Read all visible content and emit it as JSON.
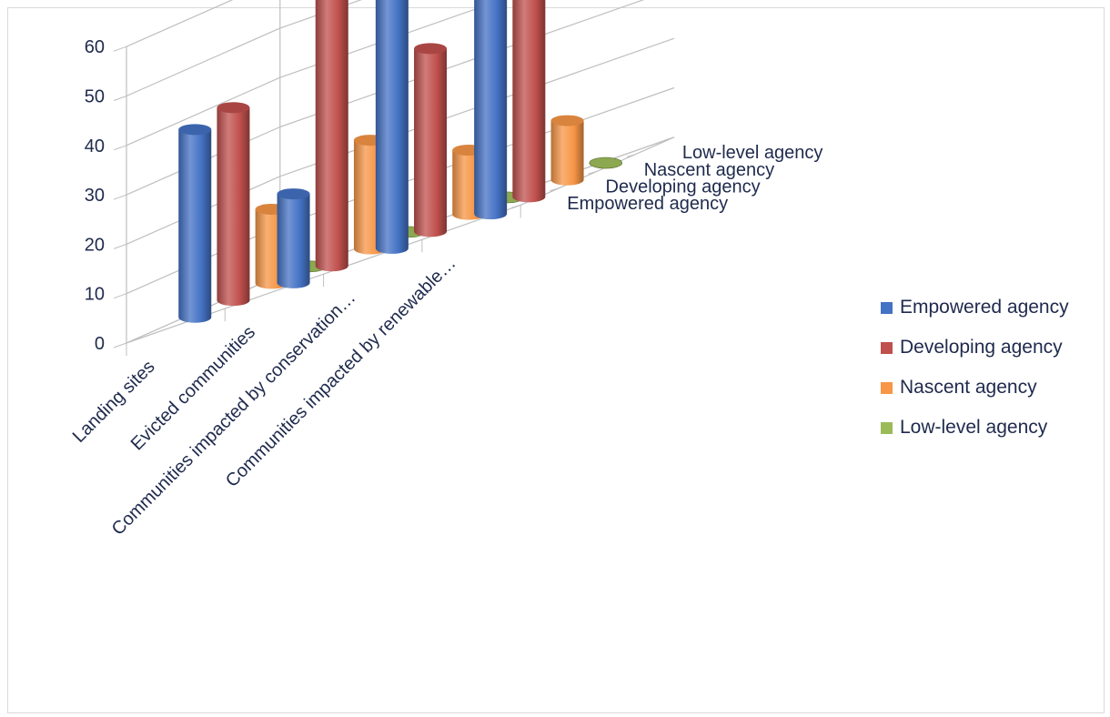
{
  "chart_data": {
    "type": "bar",
    "subtype": "3d-cylinder",
    "categories": [
      "Landing sites",
      "Evicted communities",
      "Communities impacted by conservation…",
      "Communities impacted by renewable…"
    ],
    "series": [
      {
        "name": "Empowered agency",
        "color": "#4472c4",
        "values": [
          38,
          18,
          52,
          45
        ]
      },
      {
        "name": "Developing agency",
        "color": "#c0504d",
        "values": [
          39,
          55,
          37,
          47
        ]
      },
      {
        "name": "Nascent agency",
        "color": "#f79646",
        "values": [
          15,
          22,
          13,
          12
        ]
      },
      {
        "name": "Low-level agency",
        "color": "#9bbb59",
        "values": [
          0,
          0,
          0,
          0
        ]
      }
    ],
    "y_ticks": [
      "0",
      "10",
      "20",
      "30",
      "40",
      "50",
      "60"
    ],
    "ylim": [
      0,
      60
    ],
    "grid": true,
    "legend_position": "right"
  }
}
